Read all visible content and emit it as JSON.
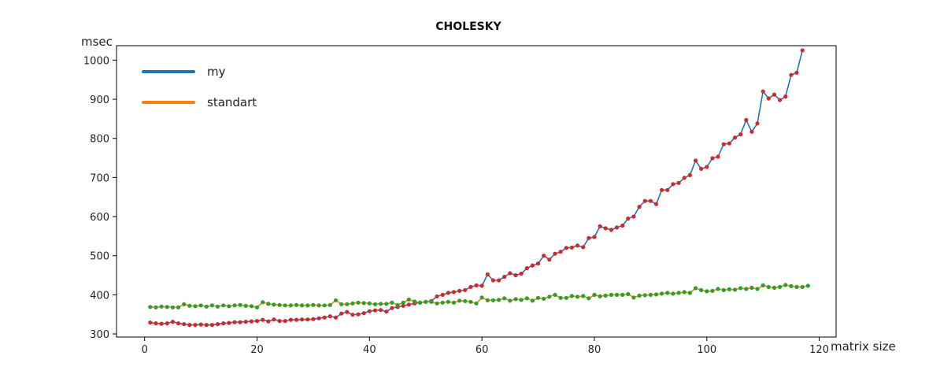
{
  "chart_data": {
    "type": "line",
    "title": "CHOLESKY",
    "xlabel": "matrix size",
    "ylabel": "msec",
    "xlim": [
      -5,
      123
    ],
    "ylim": [
      292,
      1037
    ],
    "xticks": [
      0,
      20,
      40,
      60,
      80,
      100,
      120
    ],
    "yticks": [
      300,
      400,
      500,
      600,
      700,
      800,
      900,
      1000
    ],
    "grid": false,
    "legend_position": "top-left",
    "marker_note": "each point marked with a small dot",
    "series": [
      {
        "name": "my",
        "color": "#1f77b4",
        "marker_color": "#d62728",
        "x": [
          1,
          2,
          3,
          4,
          5,
          6,
          7,
          8,
          9,
          10,
          11,
          12,
          13,
          14,
          15,
          16,
          17,
          18,
          19,
          20,
          21,
          22,
          23,
          24,
          25,
          26,
          27,
          28,
          29,
          30,
          31,
          32,
          33,
          34,
          35,
          36,
          37,
          38,
          39,
          40,
          41,
          42,
          43,
          44,
          45,
          46,
          47,
          48,
          49,
          50,
          51,
          52,
          53,
          54,
          55,
          56,
          57,
          58,
          59,
          60,
          61,
          62,
          63,
          64,
          65,
          66,
          67,
          68,
          69,
          70,
          71,
          72,
          73,
          74,
          75,
          76,
          77,
          78,
          79,
          80,
          81,
          82,
          83,
          84,
          85,
          86,
          87,
          88,
          89,
          90,
          91,
          92,
          93,
          94,
          95,
          96,
          97,
          98,
          99,
          100,
          101,
          102,
          103,
          104,
          105,
          106,
          107,
          108,
          109,
          110,
          111,
          112,
          113,
          114,
          115,
          116,
          117
        ],
        "values": [
          329,
          327,
          326,
          327,
          331,
          327,
          325,
          323,
          323,
          324,
          323,
          323,
          325,
          327,
          328,
          330,
          330,
          331,
          332,
          333,
          336,
          332,
          337,
          333,
          333,
          336,
          336,
          337,
          337,
          338,
          340,
          342,
          345,
          342,
          352,
          356,
          349,
          350,
          353,
          358,
          360,
          361,
          357,
          366,
          369,
          372,
          375,
          378,
          380,
          382,
          384,
          396,
          400,
          405,
          407,
          410,
          412,
          420,
          424,
          423,
          452,
          437,
          437,
          446,
          455,
          450,
          454,
          468,
          475,
          480,
          500,
          490,
          505,
          510,
          520,
          521,
          526,
          522,
          545,
          548,
          575,
          570,
          566,
          572,
          577,
          595,
          600,
          625,
          640,
          640,
          632,
          668,
          668,
          683,
          686,
          699,
          706,
          743,
          722,
          727,
          749,
          753,
          785,
          787,
          802,
          810,
          847,
          817,
          838,
          920,
          902,
          912,
          898,
          907,
          962,
          968,
          1025
        ]
      },
      {
        "name": "standart",
        "color": "#ff7f0e",
        "marker_color": "#2ca02c",
        "x": [
          1,
          2,
          3,
          4,
          5,
          6,
          7,
          8,
          9,
          10,
          11,
          12,
          13,
          14,
          15,
          16,
          17,
          18,
          19,
          20,
          21,
          22,
          23,
          24,
          25,
          26,
          27,
          28,
          29,
          30,
          31,
          32,
          33,
          34,
          35,
          36,
          37,
          38,
          39,
          40,
          41,
          42,
          43,
          44,
          45,
          46,
          47,
          48,
          49,
          50,
          51,
          52,
          53,
          54,
          55,
          56,
          57,
          58,
          59,
          60,
          61,
          62,
          63,
          64,
          65,
          66,
          67,
          68,
          69,
          70,
          71,
          72,
          73,
          74,
          75,
          76,
          77,
          78,
          79,
          80,
          81,
          82,
          83,
          84,
          85,
          86,
          87,
          88,
          89,
          90,
          91,
          92,
          93,
          94,
          95,
          96,
          97,
          98,
          99,
          100,
          101,
          102,
          103,
          104,
          105,
          106,
          107,
          108,
          109,
          110,
          111,
          112,
          113,
          114,
          115,
          116,
          117,
          118
        ],
        "values": [
          369,
          368,
          370,
          369,
          368,
          368,
          376,
          372,
          371,
          373,
          370,
          373,
          370,
          373,
          371,
          373,
          374,
          372,
          371,
          368,
          381,
          377,
          375,
          374,
          373,
          373,
          374,
          373,
          373,
          374,
          373,
          373,
          374,
          386,
          376,
          376,
          378,
          380,
          379,
          378,
          376,
          377,
          377,
          380,
          374,
          380,
          388,
          383,
          380,
          382,
          382,
          378,
          380,
          382,
          380,
          385,
          384,
          382,
          378,
          393,
          386,
          386,
          387,
          391,
          385,
          389,
          387,
          391,
          385,
          392,
          390,
          395,
          400,
          392,
          392,
          397,
          395,
          397,
          391,
          400,
          396,
          398,
          400,
          400,
          400,
          402,
          393,
          398,
          399,
          400,
          401,
          403,
          405,
          403,
          405,
          407,
          405,
          417,
          412,
          409,
          410,
          415,
          412,
          414,
          413,
          417,
          415,
          418,
          415,
          424,
          420,
          418,
          420,
          425,
          422,
          420,
          420,
          423
        ]
      }
    ]
  }
}
